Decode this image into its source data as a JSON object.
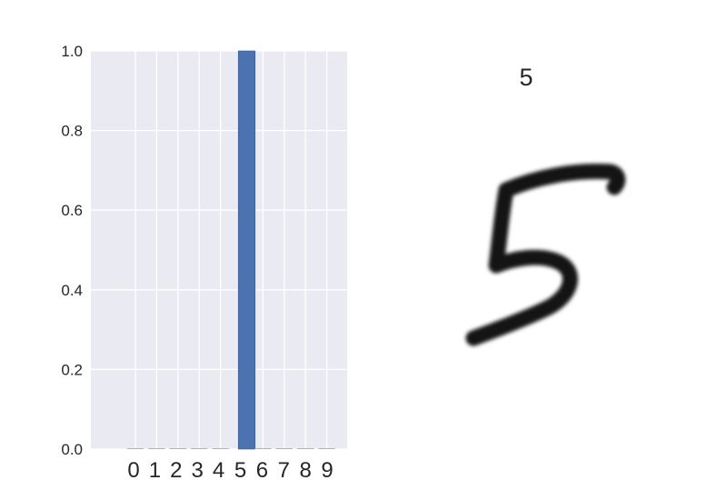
{
  "chart_data": [
    {
      "type": "bar",
      "categories": [
        "0",
        "1",
        "2",
        "3",
        "4",
        "5",
        "6",
        "7",
        "8",
        "9"
      ],
      "values": [
        0.0,
        0.0,
        0.0,
        0.0,
        0.0,
        1.0,
        0.0,
        0.0,
        0.0,
        0.0
      ],
      "yticks": [
        "0.0",
        "0.2",
        "0.4",
        "0.6",
        "0.8",
        "1.0"
      ],
      "ylim": [
        0,
        1.0
      ],
      "grid": true,
      "bar_color": "#4c72b0",
      "axes_background": "#eaeaf2"
    }
  ],
  "digit_image": {
    "title": "5",
    "depicts": "handwritten-digit-5"
  }
}
